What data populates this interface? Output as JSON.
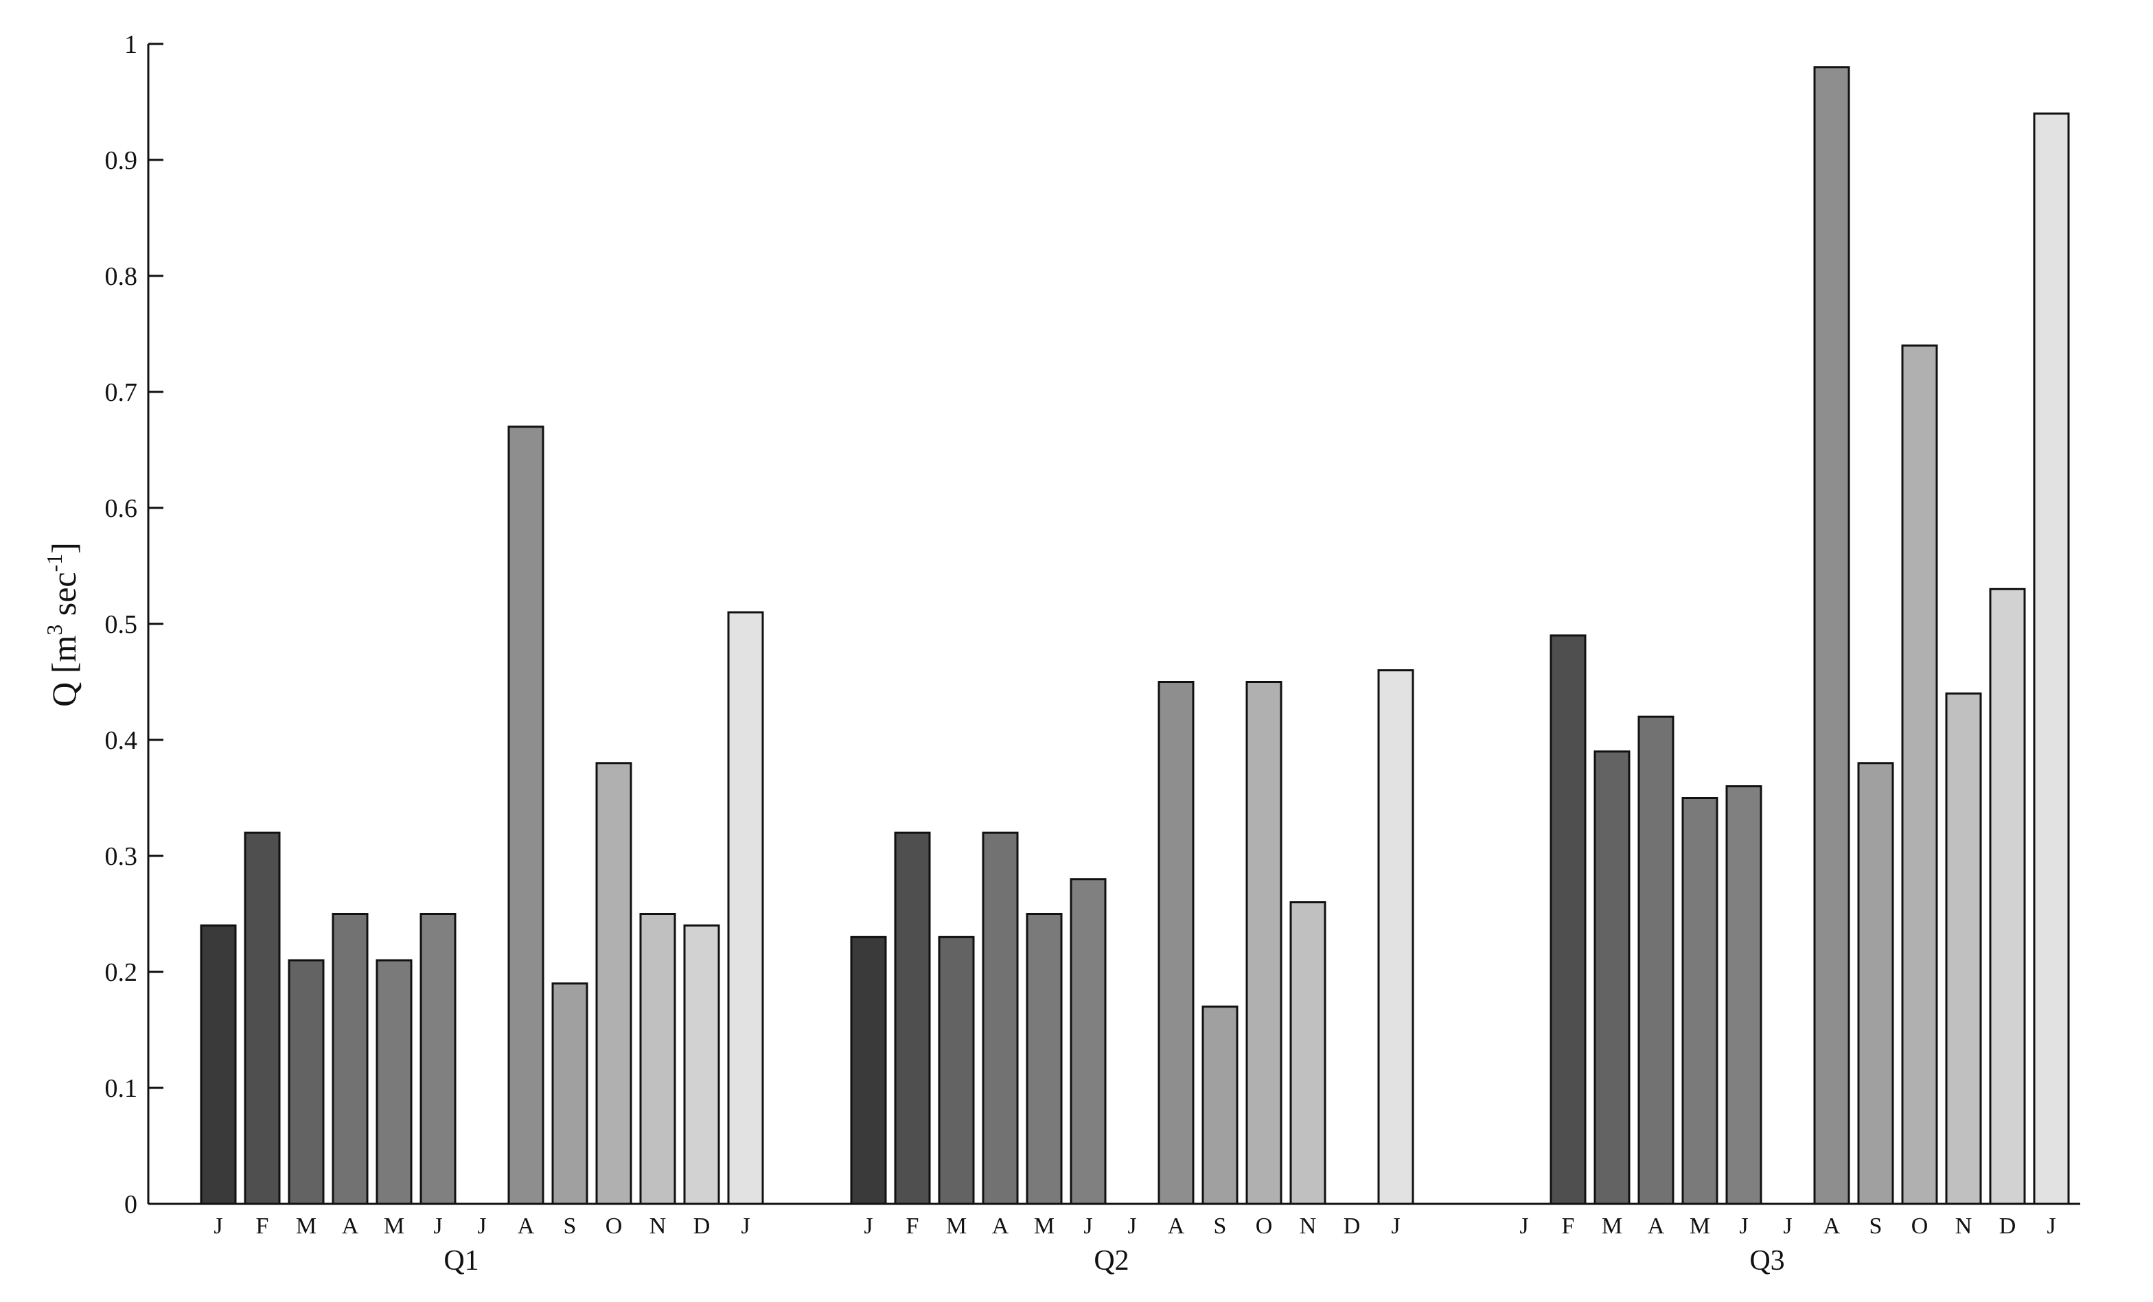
{
  "chart_data": {
    "type": "bar",
    "ylabel": {
      "main": "Q [m",
      "sup1": "3",
      "mid": " sec",
      "sup2": "-1",
      "end": "]"
    },
    "ylim": [
      0,
      1
    ],
    "yticks": [
      "0",
      "0.1",
      "0.2",
      "0.3",
      "0.4",
      "0.5",
      "0.6",
      "0.7",
      "0.8",
      "0.9",
      "1"
    ],
    "grid": false,
    "legend": "none",
    "months": [
      "J",
      "F",
      "M",
      "A",
      "M",
      "J",
      "J",
      "A",
      "S",
      "O",
      "N",
      "D",
      "J"
    ],
    "bar_colors": [
      "#3a3a3a",
      "#4f4f4f",
      "#636363",
      "#727272",
      "#7a7a7a",
      "#808080",
      "#868686",
      "#8e8e8e",
      "#a0a0a0",
      "#b0b0b0",
      "#c0c0c0",
      "#d2d2d2",
      "#e2e2e2"
    ],
    "groups": [
      {
        "name": "Q1",
        "values": [
          0.24,
          0.32,
          0.21,
          0.25,
          0.21,
          0.25,
          0,
          0.67,
          0.19,
          0.38,
          0.25,
          0.24,
          0.51
        ]
      },
      {
        "name": "Q2",
        "values": [
          0.23,
          0.32,
          0.23,
          0.32,
          0.25,
          0.28,
          0,
          0.45,
          0.17,
          0.45,
          0.26,
          0,
          0.46
        ]
      },
      {
        "name": "Q3",
        "values": [
          0,
          0.49,
          0.39,
          0.42,
          0.35,
          0.36,
          0,
          0.98,
          0.38,
          0.74,
          0.44,
          0.53,
          0.94
        ]
      }
    ]
  }
}
